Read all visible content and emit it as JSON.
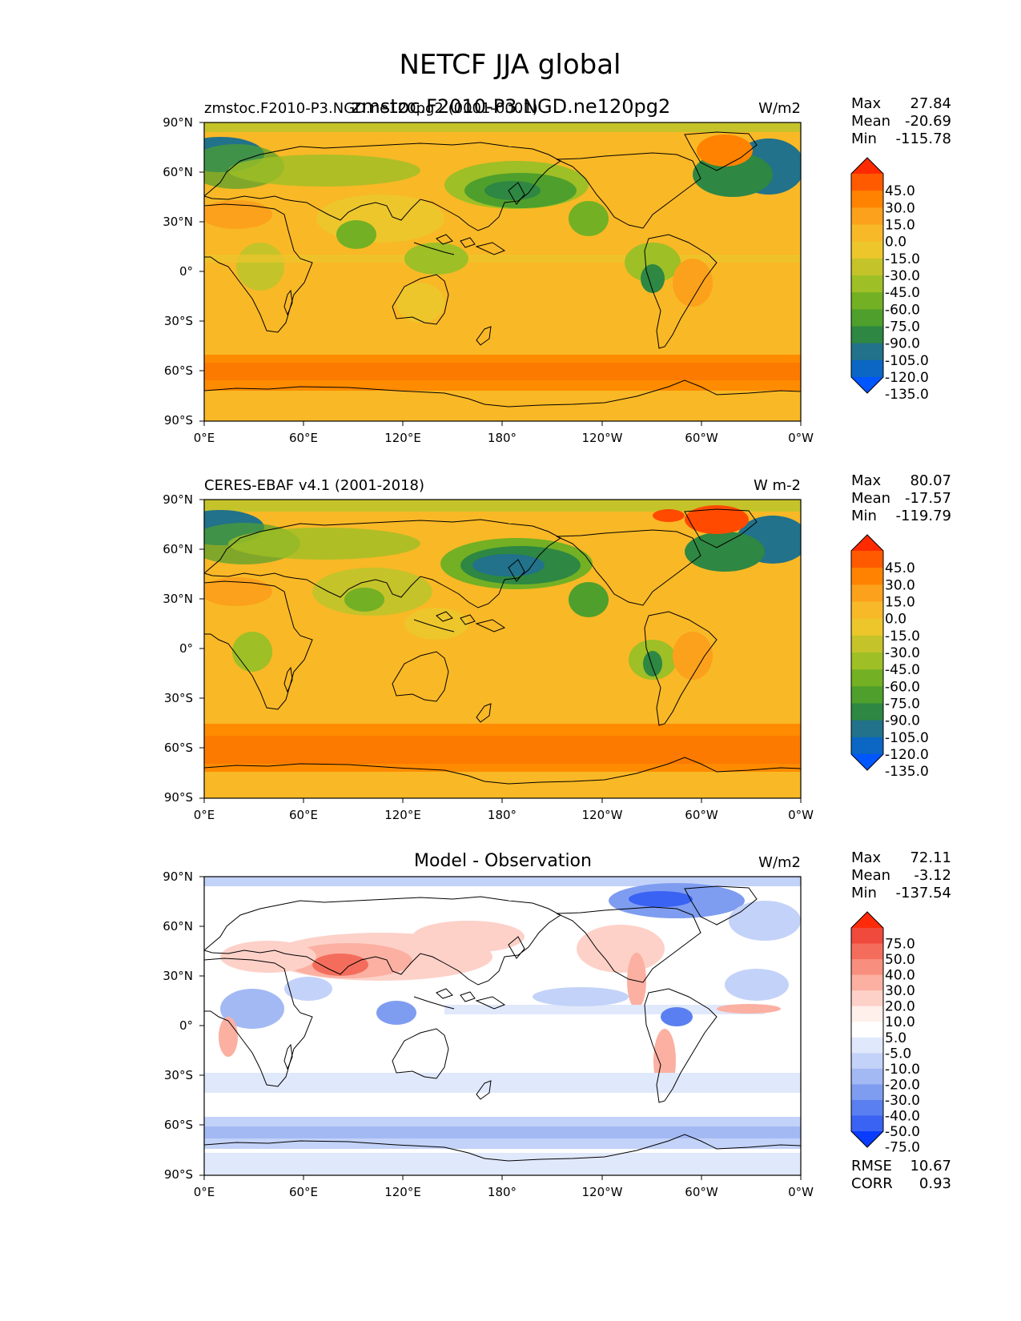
{
  "figure": {
    "title": "NETCF JJA global"
  },
  "axes": {
    "lat_ticks": [
      "90°N",
      "60°N",
      "30°N",
      "0°",
      "30°S",
      "60°S",
      "90°S"
    ],
    "lon_ticks": [
      "0°E",
      "60°E",
      "120°E",
      "180°",
      "120°W",
      "60°W",
      "0°W"
    ]
  },
  "panels": [
    {
      "id": "model",
      "left_title": "zmstoc.F2010-P3.NGD.ne120pg2 (0001-0001)",
      "center_title": "zmstoc.F2010-P3.NGD.ne120pg2",
      "units": "W/m2",
      "stats": [
        {
          "label": "Max",
          "value": "27.84"
        },
        {
          "label": "Mean",
          "value": "-20.69"
        },
        {
          "label": "Min",
          "value": "-115.78"
        }
      ],
      "colorbar": {
        "labels": [
          "45.0",
          "30.0",
          "15.0",
          "0.0",
          "-15.0",
          "-30.0",
          "-45.0",
          "-60.0",
          "-75.0",
          "-90.0",
          "-105.0",
          "-120.0",
          "-135.0"
        ],
        "colors": [
          "#ff2a00",
          "#ff5a00",
          "#ff8300",
          "#fca11c",
          "#f8b928",
          "#edc62c",
          "#c5c32a",
          "#9ebf26",
          "#73b024",
          "#4f9f2c",
          "#2e8742",
          "#21728a",
          "#0b66c4",
          "#0056ff"
        ]
      }
    },
    {
      "id": "obs",
      "left_title": "CERES-EBAF v4.1 (2001-2018)",
      "center_title": "",
      "units": "W m-2",
      "stats": [
        {
          "label": "Max",
          "value": "80.07"
        },
        {
          "label": "Mean",
          "value": "-17.57"
        },
        {
          "label": "Min",
          "value": "-119.79"
        }
      ],
      "colorbar": {
        "labels": [
          "45.0",
          "30.0",
          "15.0",
          "0.0",
          "-15.0",
          "-30.0",
          "-45.0",
          "-60.0",
          "-75.0",
          "-90.0",
          "-105.0",
          "-120.0",
          "-135.0"
        ],
        "colors": [
          "#ff2a00",
          "#ff5a00",
          "#ff8300",
          "#fca11c",
          "#f8b928",
          "#edc62c",
          "#c5c32a",
          "#9ebf26",
          "#73b024",
          "#4f9f2c",
          "#2e8742",
          "#21728a",
          "#0b66c4",
          "#0056ff"
        ]
      }
    },
    {
      "id": "diff",
      "left_title": "",
      "center_title": "Model - Observation",
      "units": "W/m2",
      "stats": [
        {
          "label": "Max",
          "value": "72.11"
        },
        {
          "label": "Mean",
          "value": "-3.12"
        },
        {
          "label": "Min",
          "value": "-137.54"
        }
      ],
      "extra_stats": [
        {
          "label": "RMSE",
          "value": "10.67"
        },
        {
          "label": "CORR",
          "value": "0.93"
        }
      ],
      "colorbar": {
        "labels": [
          "75.0",
          "50.0",
          "40.0",
          "30.0",
          "20.0",
          "10.0",
          "5.0",
          "-5.0",
          "-10.0",
          "-20.0",
          "-30.0",
          "-40.0",
          "-50.0",
          "-75.0"
        ],
        "colors": [
          "#ff2a0a",
          "#ef4a3c",
          "#f46d5c",
          "#f88f7e",
          "#fbb0a2",
          "#fdd1c8",
          "#fff0ec",
          "#ffffff",
          "#e0e8fb",
          "#c3d2f8",
          "#a3b9f4",
          "#7f9df0",
          "#5a7ff0",
          "#3a63f4",
          "#0a3cff"
        ]
      }
    }
  ]
}
